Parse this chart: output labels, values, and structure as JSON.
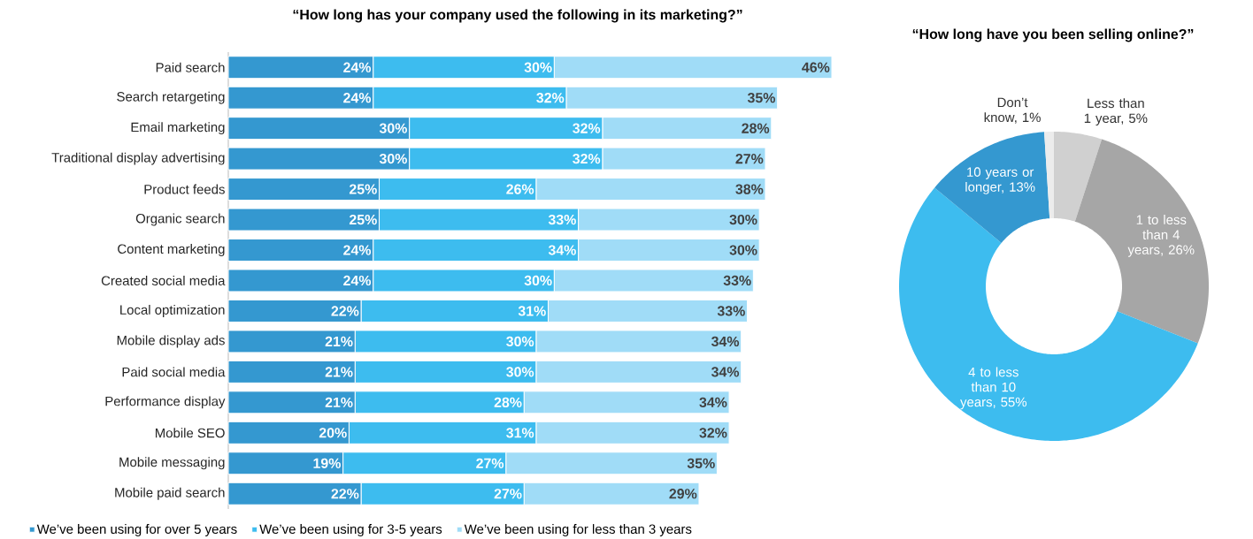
{
  "chart_data": [
    {
      "type": "bar",
      "orientation": "horizontal",
      "stacked": true,
      "title": "“How long has your company used the following in its marketing?”",
      "tick_labels": "y",
      "legend": "bottom",
      "categories": [
        "Paid search",
        "Search retargeting",
        "Email marketing",
        "Traditional display advertising",
        "Product feeds",
        "Organic search",
        "Content marketing",
        "Created social media",
        "Local optimization",
        "Mobile display ads",
        "Paid social media",
        "Performance display",
        "Mobile SEO",
        "Mobile messaging",
        "Mobile paid search"
      ],
      "series": [
        {
          "name": "We’ve been using for over 5 years",
          "color": "#3498d0",
          "values": [
            24,
            24,
            30,
            30,
            25,
            25,
            24,
            24,
            22,
            21,
            21,
            21,
            20,
            19,
            22
          ],
          "value_labels": [
            "24%",
            "24%",
            "30%",
            "30%",
            "25%",
            "25%",
            "24%",
            "24%",
            "22%",
            "21%",
            "21%",
            "21%",
            "20%",
            "19%",
            "22%"
          ]
        },
        {
          "name": "We’ve been using for 3-5 years",
          "color": "#3dbcef",
          "values": [
            30,
            32,
            32,
            32,
            26,
            33,
            34,
            30,
            31,
            30,
            30,
            28,
            31,
            27,
            27
          ],
          "value_labels": [
            "30%",
            "32%",
            "32%",
            "32%",
            "26%",
            "33%",
            "34%",
            "30%",
            "31%",
            "30%",
            "30%",
            "28%",
            "31%",
            "27%",
            "27%"
          ]
        },
        {
          "name": "We’ve been using for less than 3 years",
          "color": "#a0dcf7",
          "values": [
            46,
            35,
            28,
            27,
            38,
            30,
            30,
            33,
            33,
            34,
            34,
            34,
            32,
            35,
            29
          ],
          "value_labels": [
            "46%",
            "35%",
            "28%",
            "27%",
            "38%",
            "30%",
            "30%",
            "33%",
            "33%",
            "34%",
            "34%",
            "34%",
            "32%",
            "35%",
            "29%"
          ]
        }
      ]
    },
    {
      "type": "donut",
      "title": "“How long have you been selling online?”",
      "categories": [
        "Less than 1 year, 5%",
        "1 to less than 4 years, 26%",
        "4 to less than 10 years, 55%",
        "10 years or longer, 13%",
        "Don’t know, 1%"
      ],
      "values": [
        5,
        26,
        55,
        13,
        1
      ],
      "colors": [
        "#d0d0d0",
        "#a6a6a6",
        "#3dbcef",
        "#3498d0",
        "#ececec"
      ]
    }
  ]
}
